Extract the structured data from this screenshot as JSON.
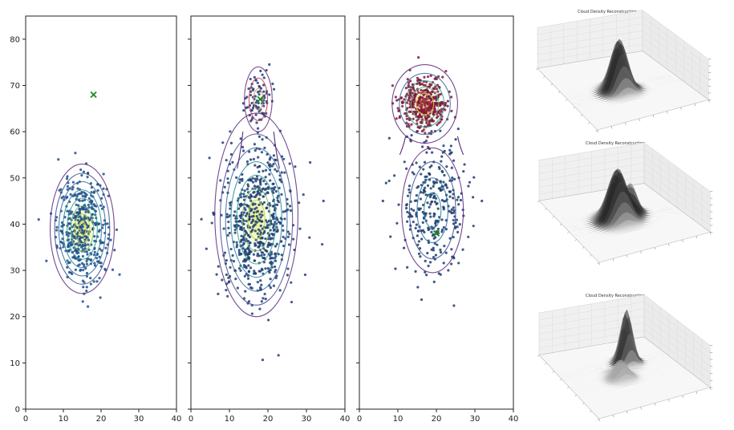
{
  "chart_data": [
    {
      "type": "scatter",
      "panel": "contour-1",
      "xlim": [
        0,
        40
      ],
      "ylim": [
        0,
        85
      ],
      "xticks": [
        "0",
        "10",
        "20",
        "30",
        "40"
      ],
      "yticks": [
        "0",
        "10",
        "20",
        "30",
        "40",
        "50",
        "60",
        "70",
        "80"
      ],
      "show_y_labels": true,
      "marker": {
        "x": 18,
        "y": 68,
        "label": "x"
      },
      "clusters": [
        {
          "cx": 15,
          "cy": 39,
          "sx": 3.3,
          "sy": 5.5,
          "n": 420,
          "color": "#1f4e89"
        }
      ],
      "contours": [
        {
          "cx": 15,
          "cy": 39,
          "rx": 8.5,
          "ry": 14,
          "color": "#5b2a7e"
        },
        {
          "cx": 15,
          "cy": 39,
          "rx": 7.3,
          "ry": 12,
          "color": "#3c4f8e"
        },
        {
          "cx": 15,
          "cy": 39,
          "rx": 6.2,
          "ry": 10.2,
          "color": "#2d6ba0"
        },
        {
          "cx": 15,
          "cy": 39,
          "rx": 5.1,
          "ry": 8.4,
          "color": "#25849b"
        },
        {
          "cx": 15,
          "cy": 39,
          "rx": 4.0,
          "ry": 6.6,
          "color": "#2c9f8c"
        },
        {
          "cx": 15,
          "cy": 39,
          "rx": 3.0,
          "ry": 4.9,
          "color": "#62bc6f"
        },
        {
          "cx": 15,
          "cy": 39,
          "rx": 2.0,
          "ry": 3.2,
          "color": "#a8d84d"
        },
        {
          "cx": 15,
          "cy": 39,
          "rx": 1.0,
          "ry": 1.6,
          "color": "#f0e442"
        }
      ],
      "fill_center": {
        "cx": 15,
        "cy": 39,
        "rx": 3.5,
        "ry": 5.5,
        "color": "#e6f06a"
      }
    },
    {
      "type": "scatter",
      "panel": "contour-2",
      "xlim": [
        0,
        40
      ],
      "ylim": [
        0,
        85
      ],
      "xticks": [
        "0",
        "10",
        "20",
        "30",
        "40"
      ],
      "yticks": [
        "",
        "",
        "",
        "",
        "",
        "",
        "",
        "",
        ""
      ],
      "show_y_labels": false,
      "marker": {
        "x": 18,
        "y": 67,
        "label": "x"
      },
      "clusters": [
        {
          "cx": 17,
          "cy": 40,
          "sx": 4.6,
          "sy": 8.0,
          "n": 620,
          "color": "#1f3e74"
        },
        {
          "cx": 17.5,
          "cy": 67,
          "sx": 1.8,
          "sy": 3.0,
          "n": 80,
          "color": "#1f3e74"
        }
      ],
      "contours": [
        {
          "cx": 17,
          "cy": 42,
          "rx": 10.8,
          "ry": 22,
          "color": "#5b2a7e"
        },
        {
          "cx": 17,
          "cy": 41,
          "rx": 9.4,
          "ry": 18.5,
          "color": "#4e4a90"
        },
        {
          "cx": 17,
          "cy": 41,
          "rx": 8.0,
          "ry": 15.5,
          "color": "#3a6aa0"
        },
        {
          "cx": 17,
          "cy": 41,
          "rx": 6.6,
          "ry": 12.5,
          "color": "#2d86a2"
        },
        {
          "cx": 17,
          "cy": 41,
          "rx": 5.1,
          "ry": 9.6,
          "color": "#30a08e"
        },
        {
          "cx": 17,
          "cy": 41,
          "rx": 3.6,
          "ry": 6.8,
          "color": "#67bd6c"
        },
        {
          "cx": 17,
          "cy": 41,
          "rx": 2.2,
          "ry": 4.2,
          "color": "#aed84a"
        },
        {
          "cx": 17.5,
          "cy": 67,
          "rx": 3.6,
          "ry": 7.0,
          "color": "#6a2a7a"
        },
        {
          "cx": 17.5,
          "cy": 67,
          "rx": 2.4,
          "ry": 4.6,
          "color": "#c0395a"
        },
        {
          "cx": 17.5,
          "cy": 67,
          "rx": 1.2,
          "ry": 2.3,
          "color": "#e78a57"
        }
      ],
      "neck": {
        "x_left": 13.5,
        "x_right": 21.5,
        "y_top": 60,
        "y_bottom": 52,
        "color": "#5b2a7e"
      },
      "fill_center": {
        "cx": 17,
        "cy": 41,
        "rx": 3.2,
        "ry": 6.5,
        "color": "#e6f06a"
      }
    },
    {
      "type": "scatter",
      "panel": "contour-3",
      "xlim": [
        0,
        40
      ],
      "ylim": [
        0,
        85
      ],
      "xticks": [
        "0",
        "10",
        "20",
        "30",
        "40"
      ],
      "yticks": [
        "",
        "",
        "",
        "",
        "",
        "",
        "",
        "",
        ""
      ],
      "show_y_labels": false,
      "marker": {
        "x": 20,
        "y": 38,
        "label": "x"
      },
      "clusters": [
        {
          "cx": 17,
          "cy": 66,
          "sx": 3.1,
          "sy": 2.9,
          "n": 380,
          "color": "#7d1a3b"
        },
        {
          "cx": 19,
          "cy": 44,
          "sx": 4.4,
          "sy": 7.2,
          "n": 300,
          "color": "#1c3d6e"
        }
      ],
      "contours": [
        {
          "cx": 17,
          "cy": 66,
          "rx": 8.5,
          "ry": 8.5,
          "color": "#5b2a7e"
        },
        {
          "cx": 17,
          "cy": 66,
          "rx": 6.6,
          "ry": 6.6,
          "color": "#3a6aa0"
        },
        {
          "cx": 17,
          "cy": 66,
          "rx": 5.0,
          "ry": 5.0,
          "color": "#30a08e"
        },
        {
          "cx": 17,
          "cy": 66,
          "rx": 3.6,
          "ry": 3.6,
          "color": "#67bd6c"
        },
        {
          "cx": 17,
          "cy": 66,
          "rx": 2.3,
          "ry": 2.3,
          "color": "#f0d040"
        },
        {
          "cx": 17,
          "cy": 66,
          "rx": 1.1,
          "ry": 1.1,
          "color": "#d63d3d"
        },
        {
          "cx": 19,
          "cy": 43,
          "rx": 8.0,
          "ry": 13.5,
          "color": "#5b2a7e"
        },
        {
          "cx": 19,
          "cy": 43,
          "rx": 6.0,
          "ry": 10.5,
          "color": "#3c4f8e"
        },
        {
          "cx": 19,
          "cy": 43,
          "rx": 4.0,
          "ry": 7.0,
          "color": "#2d6ba0"
        },
        {
          "cx": 19,
          "cy": 43,
          "rx": 2.2,
          "ry": 3.8,
          "color": "#25849b"
        }
      ],
      "neck": {
        "x_left": 12,
        "x_right": 25.5,
        "y_top": 59,
        "y_bottom": 55,
        "color": "#5b2a7e"
      },
      "fill_center": {
        "cx": 17,
        "cy": 66,
        "rx": 3.2,
        "ry": 3.2,
        "color": "#e9c45a"
      }
    }
  ],
  "surfaces": [
    {
      "title": "Cloud Density Reconstruction",
      "peaks": [
        {
          "u": 0.45,
          "v": 0.55,
          "h": 1.0,
          "w": 0.07
        }
      ]
    },
    {
      "title": "Cloud Density Reconstruction",
      "peaks": [
        {
          "u": 0.45,
          "v": 0.5,
          "h": 1.0,
          "w": 0.08
        },
        {
          "u": 0.62,
          "v": 0.42,
          "h": 0.5,
          "w": 0.05
        }
      ]
    },
    {
      "title": "Cloud Density Reconstruction",
      "peaks": [
        {
          "u": 0.62,
          "v": 0.35,
          "h": 1.0,
          "w": 0.05
        },
        {
          "u": 0.45,
          "v": 0.55,
          "h": 0.35,
          "w": 0.06
        }
      ]
    }
  ]
}
